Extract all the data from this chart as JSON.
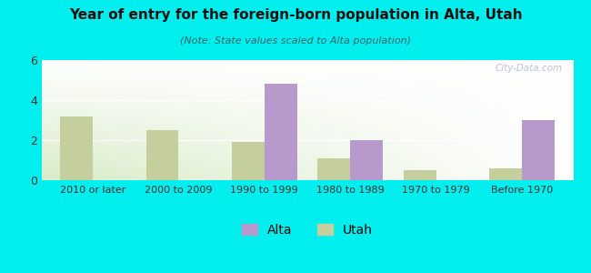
{
  "title": "Year of entry for the foreign-born population in Alta, Utah",
  "subtitle": "(Note: State values scaled to Alta population)",
  "categories": [
    "2010 or later",
    "2000 to 2009",
    "1990 to 1999",
    "1980 to 1989",
    "1970 to 1979",
    "Before 1970"
  ],
  "alta_values": [
    0,
    0,
    4.8,
    2.0,
    0,
    3.0
  ],
  "utah_values": [
    3.2,
    2.5,
    1.9,
    1.1,
    0.5,
    0.6
  ],
  "alta_color": "#b899cc",
  "utah_color": "#c5cf9e",
  "background_color": "#00eeee",
  "plot_bg_top_left": "#e8f2e0",
  "plot_bg_bottom_right": "#ffffff",
  "ylim": [
    0,
    6
  ],
  "yticks": [
    0,
    2,
    4,
    6
  ],
  "bar_width": 0.38,
  "watermark": "City-Data.com"
}
